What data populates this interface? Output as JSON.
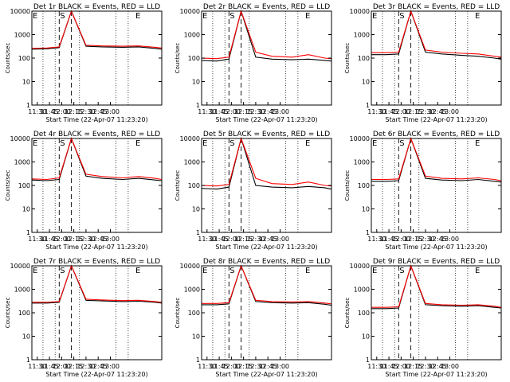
{
  "colors": {
    "events": "#000000",
    "lld": "#ff0000",
    "axes": "#000000",
    "background": "#ffffff"
  },
  "shared": {
    "xlabel": "Start Time (22-Apr-07 11:23:20)",
    "ylabel": "Counts/sec",
    "x_ticks": [
      "11:30",
      "11:45",
      "12:00",
      "12:15",
      "12:30",
      "12:45",
      "13:00"
    ],
    "y_ticks": [
      "1",
      "10",
      "100",
      "1000",
      "10000"
    ],
    "ylim": [
      1,
      10000
    ],
    "xlim_minutes": [
      23.33,
      183.33
    ],
    "markers": [
      {
        "label": "E",
        "minute": 23.33
      },
      {
        "label": "S",
        "minute": 57
      },
      {
        "label": "E",
        "minute": 150
      }
    ]
  },
  "chart_data": [
    {
      "type": "line",
      "title": "Det 1r BLACK = Events, RED = LLD",
      "x": [
        23,
        42,
        57,
        72,
        90,
        110,
        135,
        155,
        175,
        183
      ],
      "series": [
        {
          "name": "Events",
          "values": [
            240,
            250,
            280,
            10000,
            320,
            300,
            290,
            300,
            260,
            240
          ]
        },
        {
          "name": "LLD",
          "values": [
            260,
            270,
            300,
            10000,
            350,
            330,
            320,
            330,
            290,
            270
          ]
        }
      ]
    },
    {
      "type": "line",
      "title": "Det 2r BLACK = Events, RED = LLD",
      "x": [
        23,
        42,
        57,
        72,
        90,
        110,
        135,
        155,
        175,
        183
      ],
      "series": [
        {
          "name": "Events",
          "values": [
            80,
            75,
            90,
            10000,
            110,
            90,
            85,
            90,
            80,
            75
          ]
        },
        {
          "name": "LLD",
          "values": [
            100,
            95,
            110,
            10000,
            180,
            120,
            110,
            140,
            100,
            95
          ]
        }
      ]
    },
    {
      "type": "line",
      "title": "Det 3r BLACK = Events, RED = LLD",
      "x": [
        23,
        42,
        57,
        72,
        90,
        110,
        135,
        155,
        175,
        183
      ],
      "series": [
        {
          "name": "Events",
          "values": [
            140,
            140,
            150,
            10000,
            180,
            150,
            130,
            120,
            100,
            90
          ]
        },
        {
          "name": "LLD",
          "values": [
            170,
            170,
            180,
            10000,
            220,
            180,
            160,
            150,
            120,
            110
          ]
        }
      ]
    },
    {
      "type": "line",
      "title": "Det 4r BLACK = Events, RED = LLD",
      "x": [
        23,
        42,
        57,
        72,
        90,
        110,
        135,
        155,
        175,
        183
      ],
      "series": [
        {
          "name": "Events",
          "values": [
            170,
            160,
            180,
            10000,
            250,
            200,
            180,
            200,
            170,
            160
          ]
        },
        {
          "name": "LLD",
          "values": [
            190,
            180,
            210,
            10000,
            300,
            240,
            210,
            240,
            200,
            180
          ]
        }
      ]
    },
    {
      "type": "line",
      "title": "Det 5r BLACK = Events, RED = LLD",
      "x": [
        23,
        42,
        57,
        72,
        90,
        110,
        135,
        155,
        175,
        183
      ],
      "series": [
        {
          "name": "Events",
          "values": [
            75,
            70,
            85,
            10000,
            100,
            85,
            80,
            90,
            80,
            70
          ]
        },
        {
          "name": "LLD",
          "values": [
            100,
            95,
            110,
            10000,
            200,
            120,
            110,
            140,
            100,
            95
          ]
        }
      ]
    },
    {
      "type": "line",
      "title": "Det 6r BLACK = Events, RED = LLD",
      "x": [
        23,
        42,
        57,
        72,
        90,
        110,
        135,
        155,
        175,
        183
      ],
      "series": [
        {
          "name": "Events",
          "values": [
            150,
            150,
            160,
            10000,
            200,
            170,
            160,
            180,
            150,
            140
          ]
        },
        {
          "name": "LLD",
          "values": [
            180,
            180,
            190,
            10000,
            250,
            200,
            190,
            210,
            180,
            160
          ]
        }
      ]
    },
    {
      "type": "line",
      "title": "Det 7r BLACK = Events, RED = LLD",
      "x": [
        23,
        42,
        57,
        72,
        90,
        110,
        135,
        155,
        175,
        183
      ],
      "series": [
        {
          "name": "Events",
          "values": [
            260,
            260,
            280,
            10000,
            340,
            320,
            300,
            310,
            280,
            260
          ]
        },
        {
          "name": "LLD",
          "values": [
            280,
            280,
            300,
            10000,
            380,
            350,
            330,
            340,
            300,
            280
          ]
        }
      ]
    },
    {
      "type": "line",
      "title": "Det 8r BLACK = Events, RED = LLD",
      "x": [
        23,
        42,
        57,
        72,
        90,
        110,
        135,
        155,
        175,
        183
      ],
      "series": [
        {
          "name": "Events",
          "values": [
            220,
            220,
            240,
            10000,
            300,
            270,
            260,
            270,
            230,
            210
          ]
        },
        {
          "name": "LLD",
          "values": [
            250,
            250,
            270,
            10000,
            340,
            300,
            290,
            300,
            260,
            240
          ]
        }
      ]
    },
    {
      "type": "line",
      "title": "Det 9r BLACK = Events, RED = LLD",
      "x": [
        23,
        42,
        57,
        72,
        90,
        110,
        135,
        155,
        175,
        183
      ],
      "series": [
        {
          "name": "Events",
          "values": [
            150,
            150,
            160,
            10000,
            220,
            200,
            190,
            200,
            170,
            160
          ]
        },
        {
          "name": "LLD",
          "values": [
            170,
            170,
            180,
            10000,
            250,
            220,
            210,
            220,
            190,
            170
          ]
        }
      ]
    }
  ]
}
